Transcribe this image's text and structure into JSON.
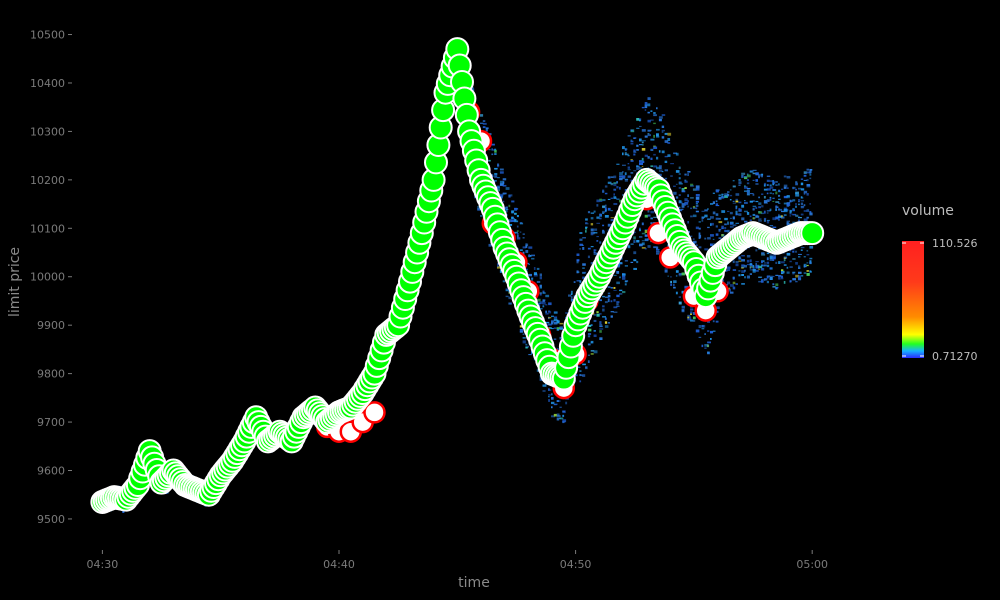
{
  "chart_data": {
    "type": "heatmap",
    "title": "",
    "xlabel": "time",
    "ylabel": "limit price",
    "background": "#000000",
    "grid": false,
    "x_ticks": [
      "04:30",
      "04:40",
      "04:50",
      "05:00"
    ],
    "x_tick_minutes": [
      0,
      10,
      20,
      30
    ],
    "xlim_minutes": [
      -1.2,
      33.5
    ],
    "y_ticks": [
      9500,
      9600,
      9700,
      9800,
      9900,
      10000,
      10100,
      10200,
      10300,
      10400,
      10500
    ],
    "ylim": [
      9440,
      10530
    ],
    "legend": {
      "title": "volume",
      "placement": "right",
      "min_label": "0.71270",
      "max_label": "110.526",
      "colors": [
        "#2a2aff",
        "#18b0ff",
        "#22ff22",
        "#ffff00",
        "#ff8c00",
        "#ff3a1a",
        "#ff2020"
      ]
    },
    "series": [
      {
        "marker": "circle",
        "fill": "#00ff00",
        "outline": "#ffffff",
        "x_minutes": [
          0,
          0.5,
          1,
          1.5,
          2,
          2.5,
          3,
          3.5,
          4,
          4.5,
          5,
          5.5,
          6,
          6.5,
          7,
          7.5,
          8,
          8.5,
          9,
          9.5,
          10,
          10.5,
          11,
          11.5,
          12,
          12.5,
          13,
          13.5,
          14,
          14.5,
          15,
          15.5,
          16,
          16.5,
          17,
          17.5,
          18,
          18.5,
          19,
          19.5,
          20,
          20.5,
          21,
          21.5,
          22,
          22.5,
          23,
          23.5,
          24,
          24.5,
          25,
          25.5,
          26,
          26.5,
          27,
          27.5,
          28,
          28.5,
          29,
          29.5,
          30
        ],
        "y_values": [
          9535,
          9545,
          9540,
          9570,
          9640,
          9575,
          9600,
          9570,
          9560,
          9550,
          9590,
          9620,
          9660,
          9710,
          9660,
          9680,
          9660,
          9710,
          9730,
          9700,
          9720,
          9730,
          9760,
          9800,
          9880,
          9900,
          9990,
          10090,
          10200,
          10380,
          10470,
          10300,
          10200,
          10140,
          10060,
          10000,
          9930,
          9870,
          9800,
          9790,
          9900,
          9960,
          10000,
          10050,
          10100,
          10160,
          10200,
          10180,
          10120,
          10060,
          10030,
          9960,
          10040,
          10060,
          10080,
          10090,
          10080,
          10070,
          10080,
          10090,
          10090
        ]
      },
      {
        "marker": "circle",
        "fill": "#ffffff",
        "outline": "#ff0000",
        "x_minutes": [
          9.5,
          10,
          10.5,
          11,
          11.5,
          15.5,
          16,
          16.5,
          17,
          17.5,
          18,
          18.5,
          19,
          19.5,
          20,
          20.5,
          23,
          23.5,
          24,
          25,
          25.5,
          26
        ],
        "y_values": [
          9690,
          9680,
          9680,
          9700,
          9720,
          10340,
          10280,
          10110,
          10080,
          10030,
          9970,
          9880,
          9830,
          9770,
          9840,
          9950,
          10160,
          10090,
          10040,
          9960,
          9930,
          9970
        ]
      }
    ]
  }
}
